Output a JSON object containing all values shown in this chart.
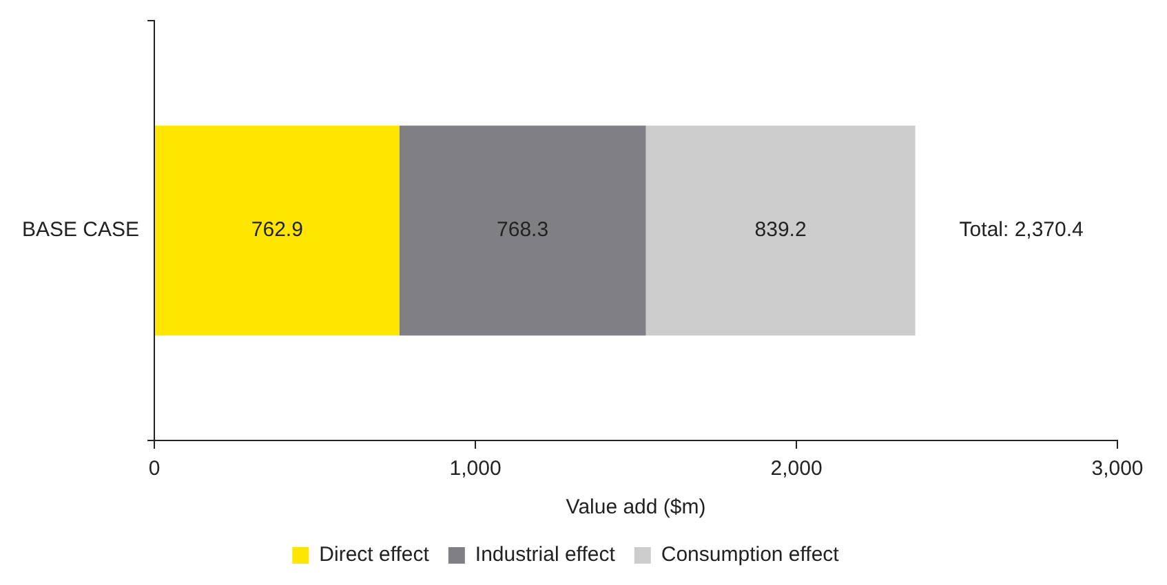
{
  "chart_data": {
    "type": "bar",
    "orientation": "horizontal",
    "stacked": true,
    "categories": [
      "BASE CASE"
    ],
    "series": [
      {
        "name": "Direct effect",
        "color": "#ffe600",
        "values": [
          762.9
        ]
      },
      {
        "name": "Industrial effect",
        "color": "#807f83",
        "values": [
          768.3
        ]
      },
      {
        "name": "Consumption effect",
        "color": "#cccccd",
        "values": [
          839.2
        ]
      }
    ],
    "xlim": [
      0,
      3000
    ],
    "xticks": [
      0,
      {
        "value": 1000,
        "label": "1,000"
      },
      {
        "value": 2000,
        "label": "2,000"
      },
      {
        "value": 3000,
        "label": "3,000"
      }
    ],
    "xlabel": "Value add ($m)",
    "data_labels": true,
    "totals": [
      "Total: 2,370.4"
    ],
    "grid": false,
    "legend": "bottom"
  }
}
